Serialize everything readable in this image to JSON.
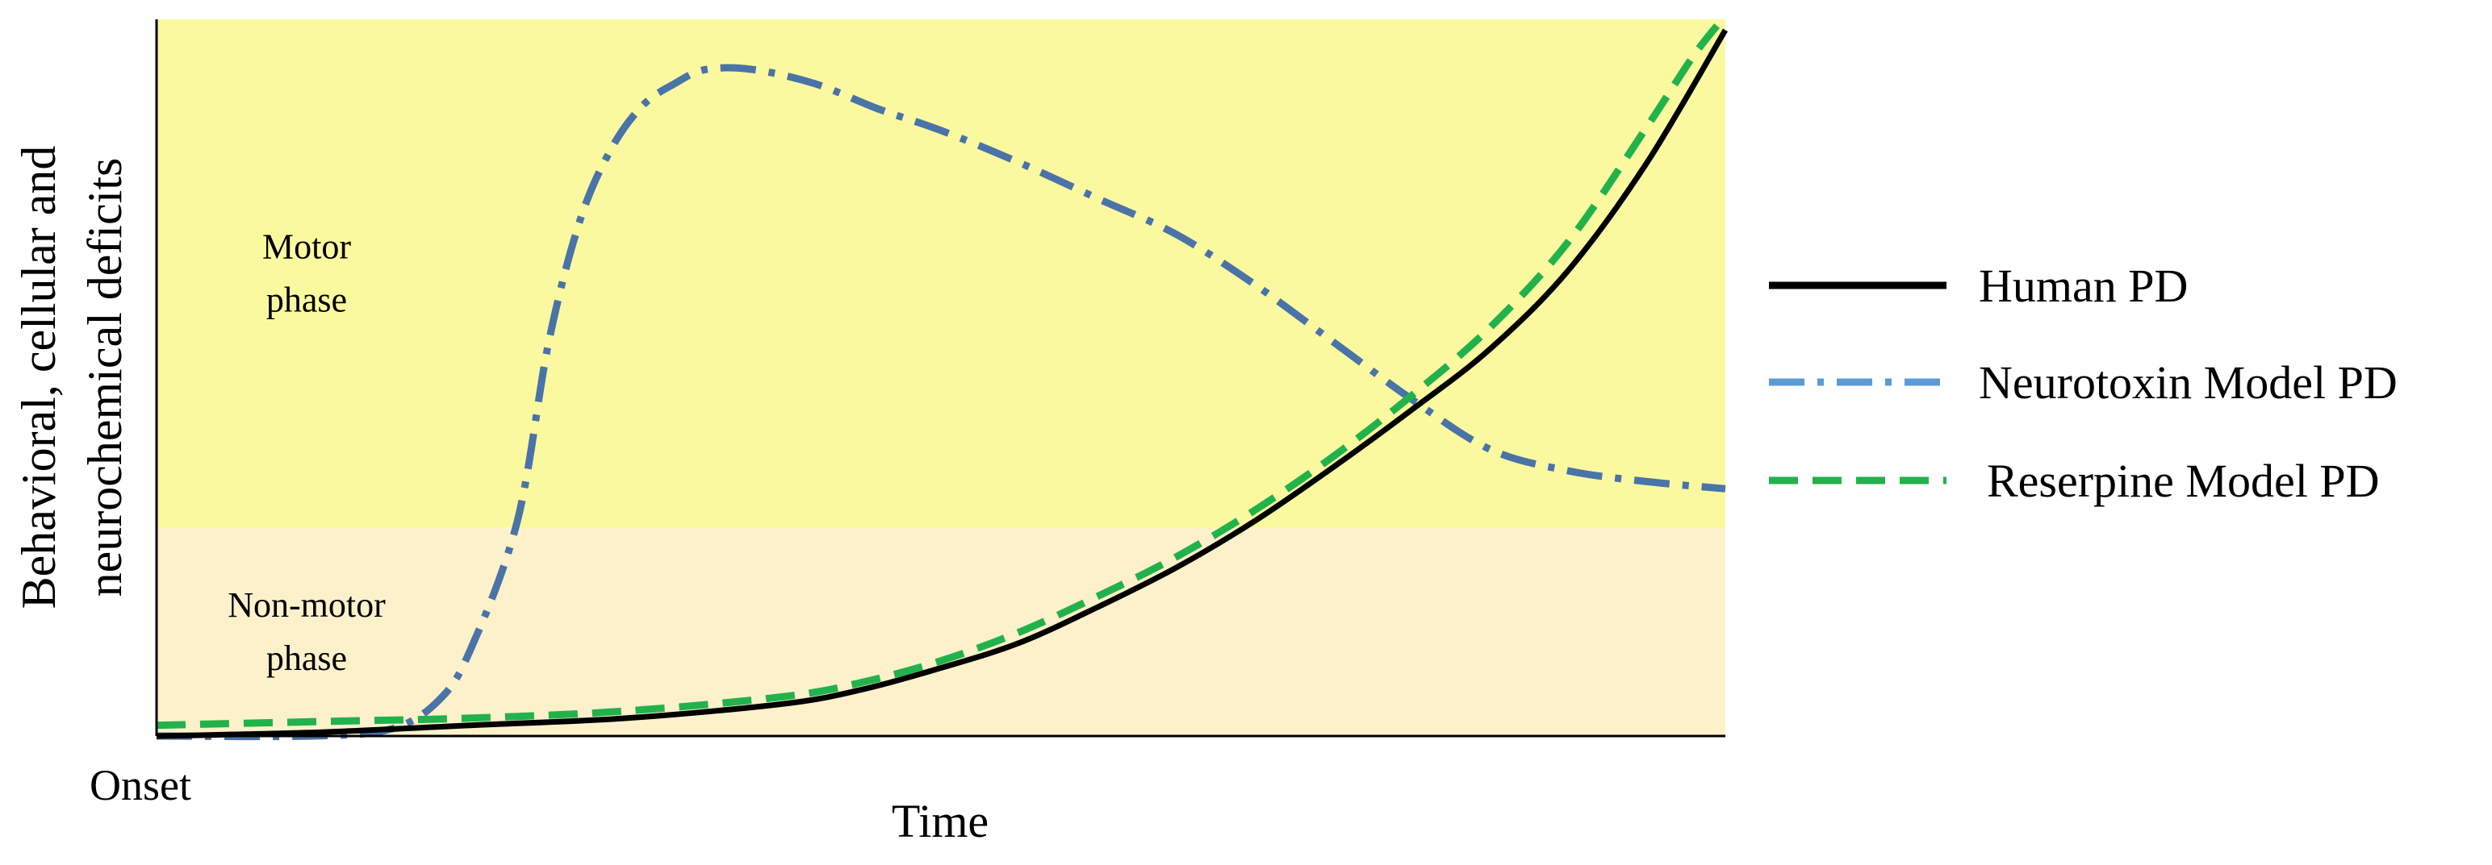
{
  "chart_data": {
    "type": "line",
    "xlabel": "Time",
    "ylabel_lines": [
      "Behavioral, cellular and",
      "neurochemical deficits"
    ],
    "x_start_label": "Onset",
    "xlim": [
      0,
      100
    ],
    "ylim": [
      0,
      100
    ],
    "grid": false,
    "legend_position": "right",
    "regions": [
      {
        "name": "Non-motor phase",
        "lines": [
          "Non-motor",
          "phase"
        ],
        "y_range": [
          0,
          29
        ],
        "color": "#fdf1cb"
      },
      {
        "name": "Motor phase",
        "lines": [
          "Motor",
          "phase"
        ],
        "y_range": [
          29,
          100
        ],
        "color": "#fbf9a0"
      }
    ],
    "series": [
      {
        "name": "Human PD",
        "style": "solid",
        "color": "#000000",
        "x": [
          0,
          10,
          20,
          30,
          40,
          45,
          50,
          55,
          60,
          65,
          70,
          75,
          80,
          85,
          90,
          95,
          100
        ],
        "y": [
          0,
          0.5,
          1.5,
          2.5,
          4.5,
          6.5,
          9.5,
          13,
          18,
          23.5,
          30,
          37.5,
          45.5,
          54,
          65,
          80,
          98.5
        ]
      },
      {
        "name": "Neurotoxin Model PD",
        "style": "dashdot",
        "color": "#4a73a8",
        "x": [
          0,
          10,
          15,
          18,
          20,
          23,
          25,
          27,
          29,
          31,
          33,
          35,
          38,
          42,
          46,
          50,
          55,
          60,
          65,
          70,
          75,
          80,
          85,
          90,
          95,
          100
        ],
        "y": [
          0,
          0,
          1,
          5,
          12,
          30,
          55,
          72,
          82,
          88,
          91,
          93,
          93,
          91,
          87.5,
          84.5,
          80,
          75,
          70,
          63,
          55,
          47,
          40,
          37,
          35.5,
          34.5
        ]
      },
      {
        "name": "Reserpine Model PD",
        "style": "dashed",
        "color": "#22b24c",
        "x": [
          0,
          10,
          20,
          30,
          40,
          45,
          50,
          55,
          60,
          65,
          70,
          75,
          80,
          85,
          90,
          95,
          98,
          100
        ],
        "y": [
          1.5,
          2,
          2.5,
          3.5,
          5.5,
          7.5,
          10.5,
          14.5,
          19.5,
          25,
          31.5,
          39,
          47.5,
          57,
          69,
          85,
          95,
          100.5
        ]
      }
    ]
  }
}
